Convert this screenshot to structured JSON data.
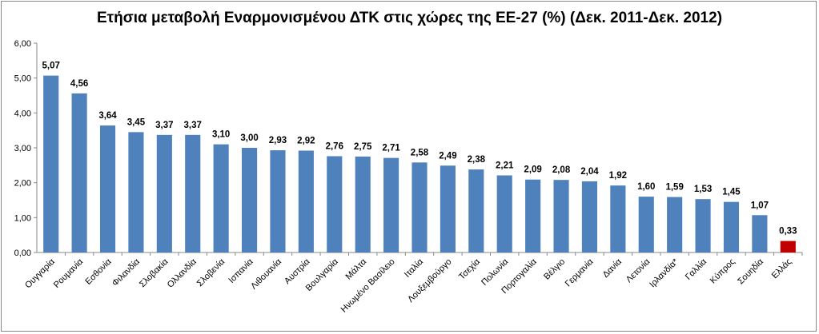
{
  "chart_data": {
    "type": "bar",
    "title": "Ετήσια μεταβολή Εναρμονισμένου ΔΤΚ στις χώρες της ΕΕ-27 (%) (Δεκ. 2011-Δεκ. 2012)",
    "xlabel": "",
    "ylabel": "",
    "ylim": [
      0,
      6
    ],
    "yticks": [
      "0,00",
      "1,00",
      "2,00",
      "3,00",
      "4,00",
      "5,00",
      "6,00"
    ],
    "grid": false,
    "legend": "none",
    "colors": {
      "default": "#4f81bd",
      "highlight": "#c00000"
    },
    "highlight_category": "Ελλάς",
    "categories": [
      "Ουγγαρία",
      "Ρουμανία",
      "Εσθονία",
      "Φιλανδία",
      "Σλοβακία",
      "Ολλανδία",
      "Σλοβενία",
      "Ισπανία",
      "Λιθουανία",
      "Αυστρία",
      "Βουλγαρία",
      "Μάλτα",
      "Ηνωμένο Βασίλειο",
      "Ιταλία",
      "Λουξεμβούργο",
      "Τσεχία",
      "Πολωνία",
      "Πορτογαλία",
      "Βέλγιο",
      "Γερμανία",
      "Δανία",
      "Λετονία",
      "Ιρλανδία*",
      "Γαλλία",
      "Κύπρος",
      "Σουηδία",
      "Ελλάς"
    ],
    "values": [
      5.07,
      4.56,
      3.64,
      3.45,
      3.37,
      3.37,
      3.1,
      3.0,
      2.93,
      2.92,
      2.76,
      2.75,
      2.71,
      2.58,
      2.49,
      2.38,
      2.21,
      2.09,
      2.08,
      2.04,
      1.92,
      1.6,
      1.59,
      1.53,
      1.45,
      1.07,
      0.33
    ],
    "value_labels": [
      "5,07",
      "4,56",
      "3,64",
      "3,45",
      "3,37",
      "3,37",
      "3,10",
      "3,00",
      "2,93",
      "2,92",
      "2,76",
      "2,75",
      "2,71",
      "2,58",
      "2,49",
      "2,38",
      "2,21",
      "2,09",
      "2,08",
      "2,04",
      "1,92",
      "1,60",
      "1,59",
      "1,53",
      "1,45",
      "1,07",
      "0,33"
    ]
  }
}
